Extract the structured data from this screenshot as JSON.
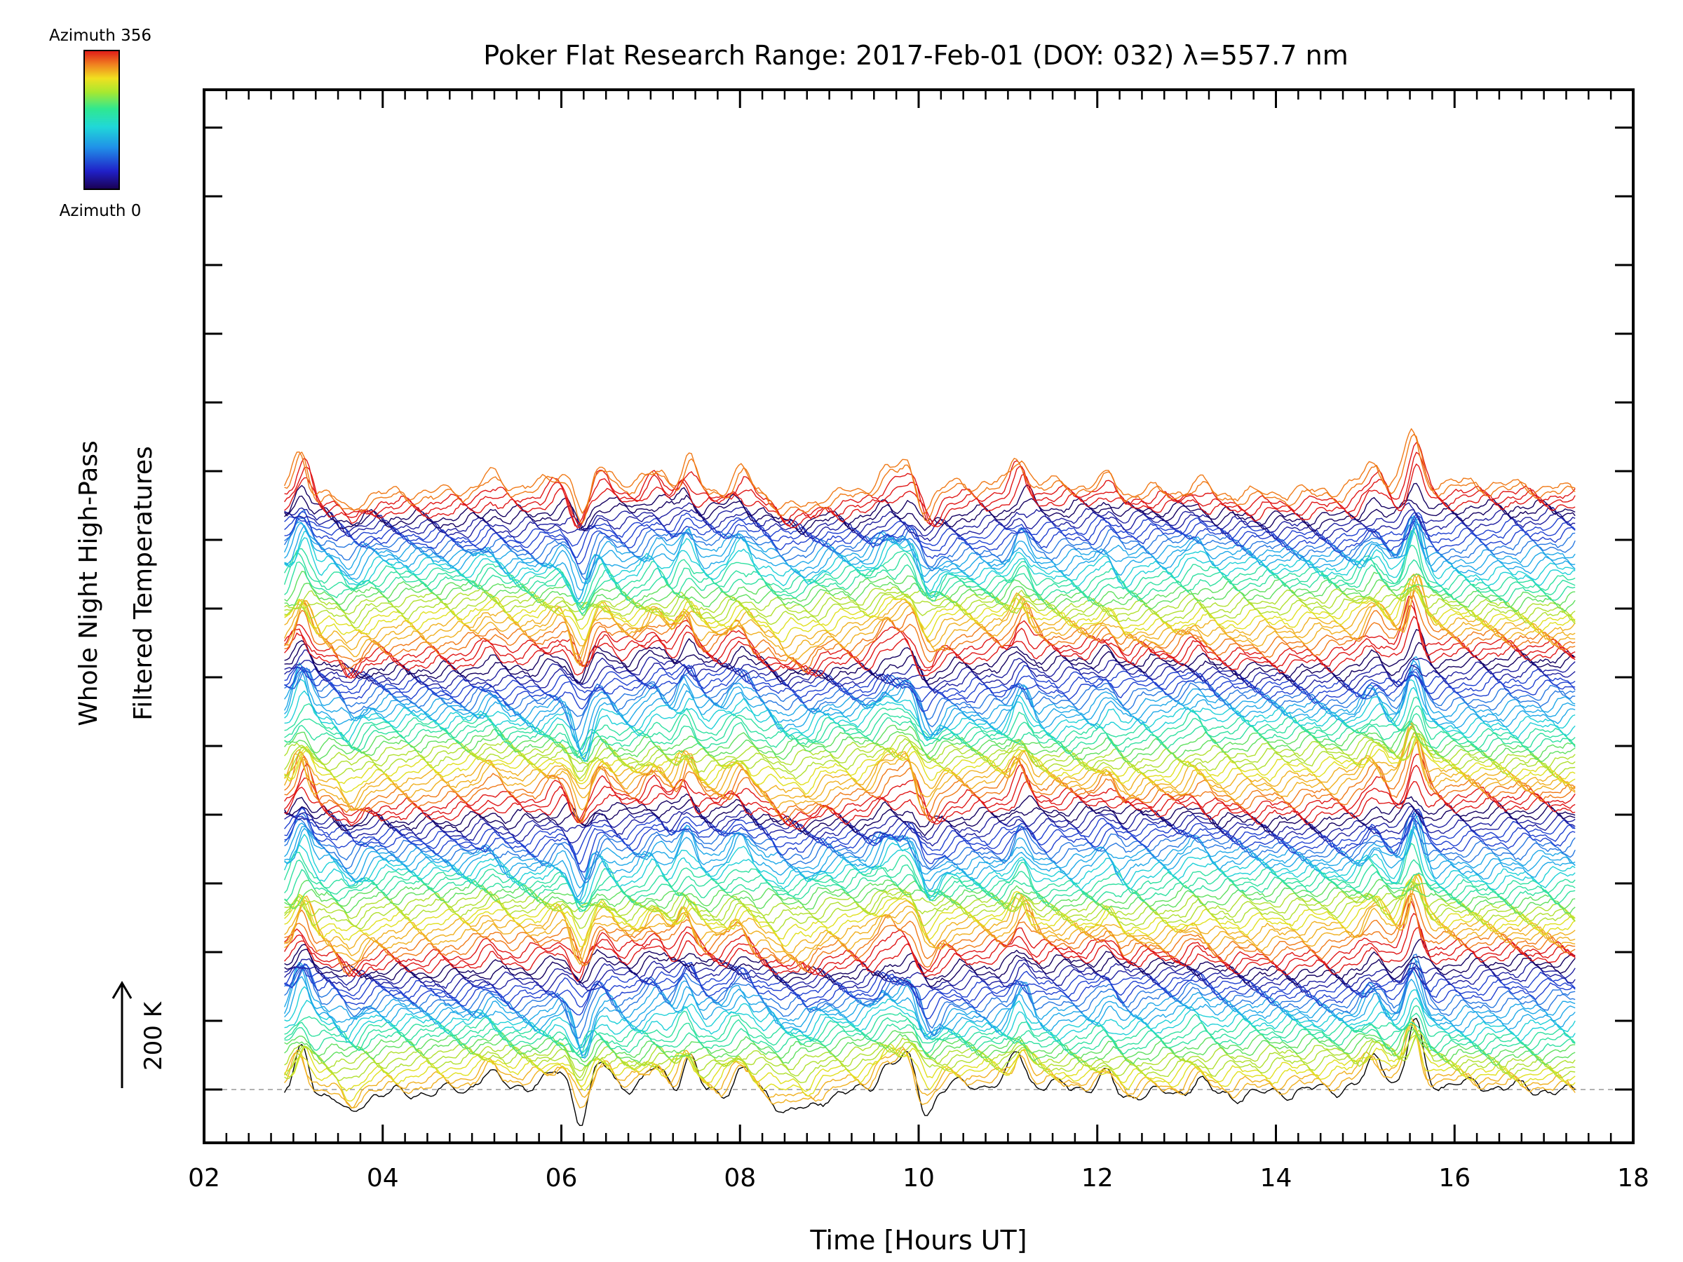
{
  "chart_data": {
    "type": "line",
    "title": "Poker Flat Research Range: 2017-Feb-01 (DOY: 032) λ=557.7 nm",
    "xlabel": "Time [Hours UT]",
    "ylabel_line1": "Whole Night High-Pass",
    "ylabel_line2": "Filtered Temperatures",
    "xlim": [
      2,
      18
    ],
    "x_ticks": [
      "02",
      "04",
      "06",
      "08",
      "10",
      "12",
      "14",
      "16",
      "18"
    ],
    "scale_bar_label": "200 K",
    "scale_bar_kelvin": 200,
    "colorbar": {
      "top_label": "Azimuth 356",
      "bottom_label": "Azimuth 0",
      "azimuth_range": [
        0,
        356
      ],
      "palette": [
        "#1a0050",
        "#2020c8",
        "#2090e8",
        "#20d8d8",
        "#30e890",
        "#a8e830",
        "#f0e020",
        "#f08020",
        "#e01818"
      ]
    },
    "series_summary": {
      "n_traces": 128,
      "t_start": 2.9,
      "t_end": 17.35,
      "bottom_trace_color": "#000000"
    },
    "common_features": [
      {
        "t": 3.1,
        "amp": 100
      },
      {
        "t": 3.65,
        "amp": -45
      },
      {
        "t": 5.2,
        "amp": 32
      },
      {
        "t": 6.0,
        "amp": 30
      },
      {
        "t": 6.22,
        "amp": -85
      },
      {
        "t": 6.45,
        "amp": 45
      },
      {
        "t": 7.05,
        "amp": 45
      },
      {
        "t": 7.4,
        "amp": 75
      },
      {
        "t": 8.0,
        "amp": 55
      },
      {
        "t": 8.5,
        "amp": -35
      },
      {
        "t": 8.75,
        "amp": -35
      },
      {
        "t": 9.65,
        "amp": 55
      },
      {
        "t": 9.9,
        "amp": 70
      },
      {
        "t": 10.1,
        "amp": -60
      },
      {
        "t": 11.15,
        "amp": 75
      },
      {
        "t": 12.15,
        "amp": 45
      },
      {
        "t": 12.25,
        "amp": -30
      },
      {
        "t": 13.1,
        "amp": 32
      },
      {
        "t": 15.1,
        "amp": 60
      },
      {
        "t": 15.55,
        "amp": 140
      }
    ]
  }
}
